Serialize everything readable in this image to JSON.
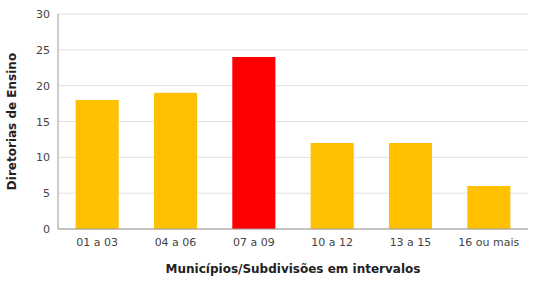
{
  "chart_data": {
    "type": "bar",
    "categories": [
      "01 a 03",
      "04 a 06",
      "07 a 09",
      "10 a 12",
      "13 a 15",
      "16 ou mais"
    ],
    "values": [
      18,
      19,
      24,
      12,
      12,
      6
    ],
    "colors": [
      "#FFC000",
      "#FFC000",
      "#FF0000",
      "#FFC000",
      "#FFC000",
      "#FFC000"
    ],
    "xlabel": "Municípios/Subdivisões em intervalos",
    "ylabel": "Diretorias de Ensino",
    "ylim": [
      0,
      30
    ],
    "yticks": [
      0,
      5,
      10,
      15,
      20,
      25,
      30
    ],
    "grid": true
  }
}
